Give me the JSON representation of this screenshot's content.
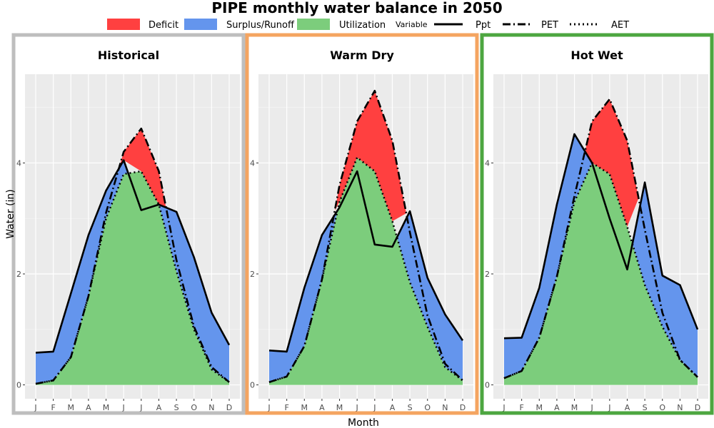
{
  "chart_data": {
    "type": "area",
    "title": "PIPE monthly water balance in 2050",
    "xlabel": "Month",
    "ylabel": "Water (in)",
    "x": [
      "J",
      "F",
      "M",
      "A",
      "M",
      "J",
      "J",
      "A",
      "S",
      "O",
      "N",
      "D"
    ],
    "ylim": [
      -0.25,
      5.6
    ],
    "yticks": [
      0,
      2,
      4
    ],
    "grid": true,
    "legend": {
      "placement": "top",
      "fills": [
        {
          "name": "Deficit",
          "color": "#ff4040"
        },
        {
          "name": "Surplus/Runoff",
          "color": "#6495ed"
        },
        {
          "name": "Utilization",
          "color": "#7ccd7c"
        }
      ],
      "variable_title": "Variable",
      "lines": [
        {
          "name": "Ppt",
          "dash": "solid"
        },
        {
          "name": "PET",
          "dash": "longdash-dot"
        },
        {
          "name": "AET",
          "dash": "dotted"
        }
      ]
    },
    "panels": [
      {
        "name": "Historical",
        "border_color": "#bebebe",
        "series": [
          {
            "name": "Ppt",
            "values": [
              0.58,
              0.6,
              1.65,
              2.7,
              3.5,
              4.05,
              3.15,
              3.25,
              3.12,
              2.3,
              1.3,
              0.72
            ]
          },
          {
            "name": "PET",
            "values": [
              0.02,
              0.08,
              0.5,
              1.6,
              3.1,
              4.2,
              4.62,
              3.85,
              2.25,
              1.05,
              0.32,
              0.05
            ]
          },
          {
            "name": "AET",
            "values": [
              0.02,
              0.08,
              0.5,
              1.6,
              3.0,
              3.8,
              3.85,
              3.25,
              2.05,
              1.0,
              0.28,
              0.05
            ]
          }
        ]
      },
      {
        "name": "Warm Dry",
        "border_color": "#f4a460",
        "series": [
          {
            "name": "Ppt",
            "values": [
              0.62,
              0.6,
              1.75,
              2.7,
              3.2,
              3.85,
              2.53,
              2.49,
              3.13,
              1.93,
              1.27,
              0.8
            ]
          },
          {
            "name": "PET",
            "values": [
              0.05,
              0.15,
              0.7,
              1.9,
              3.6,
              4.75,
              5.3,
              4.4,
              2.75,
              1.25,
              0.38,
              0.08
            ]
          },
          {
            "name": "AET",
            "values": [
              0.05,
              0.15,
              0.7,
              1.9,
              3.3,
              4.1,
              3.85,
              2.95,
              1.85,
              1.05,
              0.32,
              0.08
            ]
          }
        ]
      },
      {
        "name": "Hot Wet",
        "border_color": "#4da640",
        "series": [
          {
            "name": "Ppt",
            "values": [
              0.84,
              0.85,
              1.75,
              3.25,
              4.52,
              4.0,
              3.0,
              2.08,
              3.65,
              1.97,
              1.8,
              1.0
            ]
          },
          {
            "name": "PET",
            "values": [
              0.12,
              0.25,
              0.85,
              1.95,
              3.4,
              4.75,
              5.15,
              4.4,
              2.8,
              1.3,
              0.45,
              0.14
            ]
          },
          {
            "name": "AET",
            "values": [
              0.12,
              0.25,
              0.85,
              1.95,
              3.3,
              4.0,
              3.8,
              2.85,
              1.8,
              1.05,
              0.45,
              0.14
            ]
          }
        ]
      }
    ]
  }
}
